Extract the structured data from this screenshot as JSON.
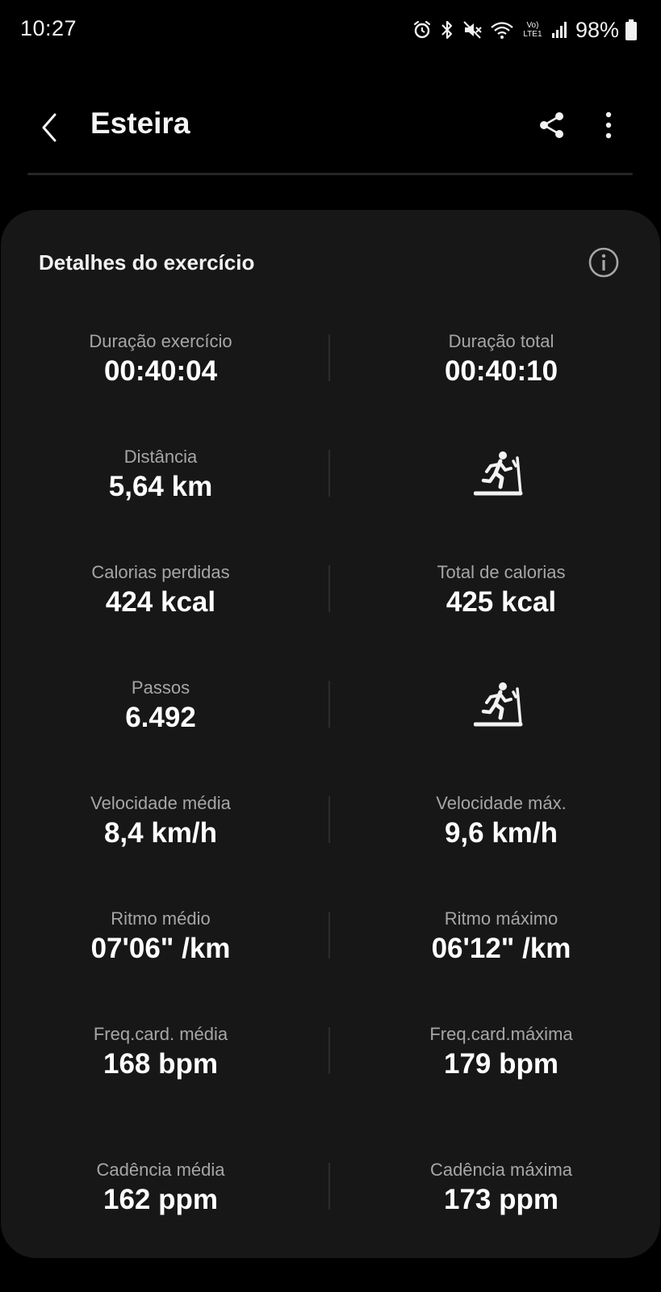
{
  "status_bar": {
    "time": "10:27",
    "battery_percent": "98%",
    "network_label": "Vo) LTE1",
    "icons": [
      "alarm-icon",
      "bluetooth-icon",
      "mute-icon",
      "wifi-icon",
      "lte-icon",
      "signal-icon",
      "battery-icon"
    ]
  },
  "app_bar": {
    "title": "Esteira",
    "back_icon": "chevron-left-icon",
    "share_icon": "share-icon",
    "more_icon": "more-vertical-icon"
  },
  "card": {
    "title": "Detalhes do exercício",
    "info_icon": "info-icon",
    "rows": [
      {
        "left": {
          "label": "Duração exercício",
          "value": "00:40:04"
        },
        "right": {
          "label": "Duração total",
          "value": "00:40:10"
        }
      },
      {
        "left": {
          "label": "Distância",
          "value": "5,64 km"
        },
        "right": {
          "icon": "treadmill-runner-icon"
        }
      },
      {
        "left": {
          "label": "Calorias perdidas",
          "value": "424 kcal"
        },
        "right": {
          "label": "Total de calorias",
          "value": "425 kcal"
        }
      },
      {
        "left": {
          "label": "Passos",
          "value": "6.492"
        },
        "right": {
          "icon": "treadmill-runner-icon"
        }
      },
      {
        "left": {
          "label": "Velocidade média",
          "value": "8,4 km/h"
        },
        "right": {
          "label": "Velocidade máx.",
          "value": "9,6 km/h"
        }
      },
      {
        "left": {
          "label": "Ritmo médio",
          "value": "07'06\" /km"
        },
        "right": {
          "label": "Ritmo máximo",
          "value": "06'12\" /km"
        }
      },
      {
        "left": {
          "label": "Freq.card. média",
          "value": "168 bpm"
        },
        "right": {
          "label": "Freq.card.máxima",
          "value": "179 bpm"
        }
      },
      {
        "left": {
          "label": "Cadência média",
          "value": "162 ppm"
        },
        "right": {
          "label": "Cadência máxima",
          "value": "173 ppm"
        }
      }
    ]
  },
  "colors": {
    "background": "#000000",
    "card_background": "#171717",
    "label_text": "#a6a6a6",
    "value_text": "#ffffff"
  }
}
